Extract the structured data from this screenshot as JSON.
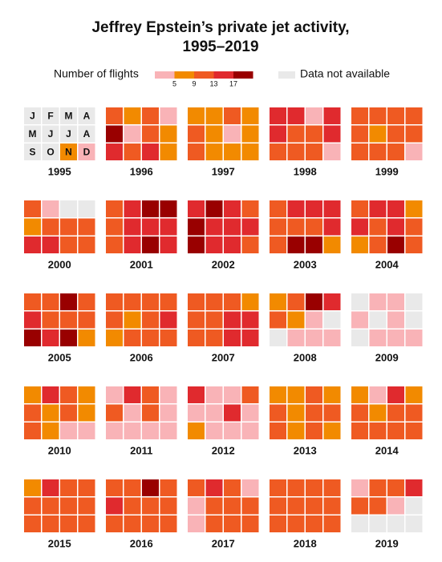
{
  "chart_data": {
    "type": "calendar-heatmap",
    "title": "Jeffrey Epstein’s private jet activity,",
    "subtitle": "1995–2019",
    "legend": {
      "title": "Number of flights",
      "thresholds": [
        5,
        9,
        13,
        17
      ],
      "colors": [
        "#f9b3b7",
        "#f28a00",
        "#ef5a22",
        "#e02a2e",
        "#990000"
      ],
      "na_label": "Data not available",
      "na_color": "#e9e9e9"
    },
    "months": [
      "J",
      "F",
      "M",
      "A",
      "M",
      "J",
      "J",
      "A",
      "S",
      "O",
      "N",
      "D"
    ],
    "series": [
      {
        "name": "1995",
        "values": [
          null,
          null,
          null,
          null,
          null,
          null,
          null,
          null,
          null,
          null,
          7,
          3
        ]
      },
      {
        "name": "1996",
        "values": [
          11,
          7,
          11,
          3,
          19,
          3,
          11,
          7,
          15,
          11,
          15,
          7
        ]
      },
      {
        "name": "1997",
        "values": [
          7,
          7,
          11,
          7,
          11,
          7,
          3,
          7,
          11,
          7,
          7,
          7
        ]
      },
      {
        "name": "1998",
        "values": [
          15,
          15,
          3,
          15,
          15,
          11,
          11,
          15,
          11,
          11,
          11,
          3
        ]
      },
      {
        "name": "1999",
        "values": [
          11,
          11,
          11,
          11,
          11,
          7,
          11,
          11,
          11,
          11,
          11,
          3
        ]
      },
      {
        "name": "2000",
        "values": [
          11,
          3,
          null,
          null,
          7,
          11,
          11,
          11,
          15,
          15,
          11,
          11
        ]
      },
      {
        "name": "2001",
        "values": [
          11,
          15,
          19,
          19,
          11,
          15,
          15,
          15,
          11,
          15,
          19,
          15
        ]
      },
      {
        "name": "2002",
        "values": [
          15,
          19,
          15,
          11,
          19,
          15,
          15,
          15,
          19,
          15,
          15,
          11
        ]
      },
      {
        "name": "2003",
        "values": [
          11,
          15,
          15,
          15,
          11,
          11,
          11,
          15,
          11,
          19,
          19,
          7
        ]
      },
      {
        "name": "2004",
        "values": [
          11,
          15,
          15,
          7,
          15,
          11,
          15,
          11,
          7,
          11,
          19,
          11
        ]
      },
      {
        "name": "2005",
        "values": [
          11,
          11,
          19,
          11,
          15,
          11,
          11,
          11,
          19,
          15,
          19,
          7
        ]
      },
      {
        "name": "2006",
        "values": [
          11,
          11,
          11,
          11,
          11,
          7,
          11,
          15,
          7,
          11,
          11,
          11
        ]
      },
      {
        "name": "2007",
        "values": [
          11,
          11,
          11,
          7,
          11,
          11,
          15,
          15,
          11,
          11,
          15,
          15
        ]
      },
      {
        "name": "2008",
        "values": [
          7,
          11,
          19,
          15,
          11,
          7,
          3,
          null,
          null,
          3,
          3,
          3
        ]
      },
      {
        "name": "2009",
        "values": [
          null,
          3,
          3,
          null,
          3,
          null,
          3,
          null,
          null,
          3,
          3,
          3
        ]
      },
      {
        "name": "2010",
        "values": [
          7,
          15,
          11,
          7,
          11,
          7,
          11,
          7,
          11,
          7,
          3,
          3
        ]
      },
      {
        "name": "2011",
        "values": [
          3,
          15,
          11,
          3,
          11,
          3,
          11,
          3,
          3,
          3,
          3,
          3
        ]
      },
      {
        "name": "2012",
        "values": [
          15,
          3,
          3,
          11,
          3,
          3,
          15,
          3,
          7,
          3,
          3,
          3
        ]
      },
      {
        "name": "2013",
        "values": [
          7,
          7,
          11,
          7,
          11,
          7,
          11,
          11,
          11,
          7,
          11,
          7
        ]
      },
      {
        "name": "2014",
        "values": [
          7,
          3,
          15,
          7,
          11,
          7,
          11,
          11,
          11,
          11,
          11,
          11
        ]
      },
      {
        "name": "2015",
        "values": [
          7,
          15,
          11,
          11,
          11,
          11,
          11,
          11,
          11,
          11,
          11,
          11
        ]
      },
      {
        "name": "2016",
        "values": [
          11,
          11,
          19,
          11,
          15,
          11,
          11,
          11,
          11,
          11,
          11,
          11
        ]
      },
      {
        "name": "2017",
        "values": [
          11,
          15,
          11,
          3,
          3,
          11,
          11,
          11,
          3,
          11,
          11,
          11
        ]
      },
      {
        "name": "2018",
        "values": [
          11,
          11,
          11,
          11,
          11,
          11,
          11,
          11,
          11,
          11,
          11,
          11
        ]
      },
      {
        "name": "2019",
        "values": [
          3,
          11,
          11,
          15,
          11,
          11,
          3,
          null,
          null,
          null,
          null,
          null
        ]
      }
    ]
  }
}
